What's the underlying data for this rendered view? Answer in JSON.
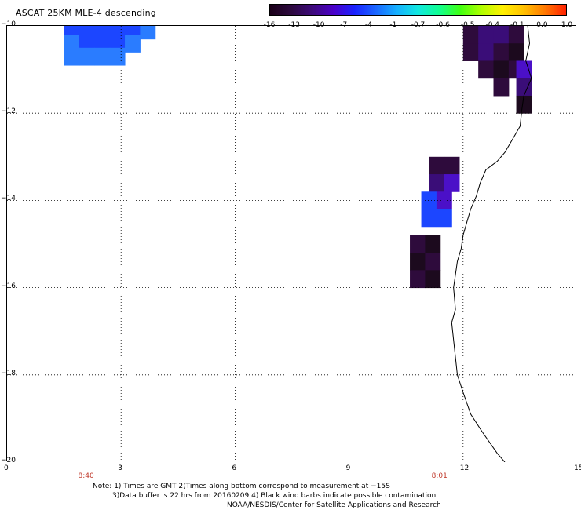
{
  "title": "ASCAT 25KM MLE-4 descending",
  "colorbar": {
    "colors": [
      "#1a0018",
      "#2d0a3f",
      "#3d0a7a",
      "#4b00c8",
      "#1a22ff",
      "#1a66ff",
      "#16b0ff",
      "#12e8e0",
      "#10ff90",
      "#40ff10",
      "#b0ff00",
      "#fff000",
      "#ffc000",
      "#ff7800",
      "#ff2000"
    ],
    "labels": [
      "-16",
      "-13",
      "-10",
      "-7",
      "-4",
      "-1",
      "-0.7",
      "-0.6",
      "-0.5",
      "-0.4",
      "-0.1",
      "0.0",
      "1.0"
    ]
  },
  "axes": {
    "x_ticks": [
      "0",
      "3",
      "6",
      "9",
      "12",
      "15"
    ],
    "y_ticks": [
      "-10",
      "-12",
      "-14",
      "-16",
      "-18",
      "-20"
    ],
    "xlim": [
      0,
      15
    ],
    "ylim": [
      -20,
      -10
    ]
  },
  "pass_times": [
    {
      "label": "8:40",
      "lon": 2.1
    },
    {
      "label": "8:01",
      "lon": 11.4
    }
  ],
  "mle_cells": [
    {
      "lon": 1.7,
      "lat": -10.1,
      "level": 4
    },
    {
      "lon": 2.1,
      "lat": -10.1,
      "level": 4
    },
    {
      "lon": 2.5,
      "lat": -10.1,
      "level": 4
    },
    {
      "lon": 2.9,
      "lat": -10.1,
      "level": 4
    },
    {
      "lon": 3.3,
      "lat": -10.1,
      "level": 4
    },
    {
      "lon": 3.7,
      "lat": -10.1,
      "level": 5
    },
    {
      "lon": 1.7,
      "lat": -10.4,
      "level": 5
    },
    {
      "lon": 2.1,
      "lat": -10.4,
      "level": 4
    },
    {
      "lon": 2.5,
      "lat": -10.4,
      "level": 4
    },
    {
      "lon": 2.9,
      "lat": -10.4,
      "level": 4
    },
    {
      "lon": 3.3,
      "lat": -10.4,
      "level": 5
    },
    {
      "lon": 1.7,
      "lat": -10.7,
      "level": 5
    },
    {
      "lon": 2.1,
      "lat": -10.7,
      "level": 5
    },
    {
      "lon": 2.5,
      "lat": -10.7,
      "level": 5
    },
    {
      "lon": 2.9,
      "lat": -10.7,
      "level": 5
    },
    {
      "lon": 12.2,
      "lat": -10.2,
      "level": 1
    },
    {
      "lon": 12.6,
      "lat": -10.2,
      "level": 2
    },
    {
      "lon": 13.0,
      "lat": -10.2,
      "level": 2
    },
    {
      "lon": 13.4,
      "lat": -10.2,
      "level": 1
    },
    {
      "lon": 12.2,
      "lat": -10.6,
      "level": 1
    },
    {
      "lon": 12.6,
      "lat": -10.6,
      "level": 2
    },
    {
      "lon": 13.0,
      "lat": -10.6,
      "level": 1
    },
    {
      "lon": 13.4,
      "lat": -10.6,
      "level": 0
    },
    {
      "lon": 12.6,
      "lat": -11.0,
      "level": 1
    },
    {
      "lon": 13.0,
      "lat": -11.0,
      "level": 0
    },
    {
      "lon": 13.4,
      "lat": -11.0,
      "level": 1
    },
    {
      "lon": 13.6,
      "lat": -11.0,
      "level": 3
    },
    {
      "lon": 13.0,
      "lat": -11.4,
      "level": 1
    },
    {
      "lon": 13.6,
      "lat": -11.4,
      "level": 2
    },
    {
      "lon": 13.6,
      "lat": -11.8,
      "level": 0
    },
    {
      "lon": 11.3,
      "lat": -13.2,
      "level": 1
    },
    {
      "lon": 11.7,
      "lat": -13.2,
      "level": 1
    },
    {
      "lon": 11.3,
      "lat": -13.6,
      "level": 2
    },
    {
      "lon": 11.7,
      "lat": -13.6,
      "level": 3
    },
    {
      "lon": 11.1,
      "lat": -14.0,
      "level": 4
    },
    {
      "lon": 11.5,
      "lat": -14.0,
      "level": 3
    },
    {
      "lon": 11.1,
      "lat": -14.4,
      "level": 4
    },
    {
      "lon": 11.5,
      "lat": -14.4,
      "level": 4
    },
    {
      "lon": 10.8,
      "lat": -15.0,
      "level": 1
    },
    {
      "lon": 11.2,
      "lat": -15.0,
      "level": 0
    },
    {
      "lon": 10.8,
      "lat": -15.4,
      "level": 0
    },
    {
      "lon": 11.2,
      "lat": -15.4,
      "level": 1
    },
    {
      "lon": 10.8,
      "lat": -15.8,
      "level": 1
    },
    {
      "lon": 11.2,
      "lat": -15.8,
      "level": 0
    }
  ],
  "coastline": [
    [
      13.7,
      -10.0
    ],
    [
      13.75,
      -10.4
    ],
    [
      13.65,
      -10.8
    ],
    [
      13.8,
      -11.2
    ],
    [
      13.6,
      -11.6
    ],
    [
      13.55,
      -11.9
    ],
    [
      13.5,
      -12.3
    ],
    [
      13.3,
      -12.6
    ],
    [
      13.1,
      -12.9
    ],
    [
      12.9,
      -13.1
    ],
    [
      12.6,
      -13.3
    ],
    [
      12.45,
      -13.6
    ],
    [
      12.35,
      -13.9
    ],
    [
      12.2,
      -14.2
    ],
    [
      12.1,
      -14.5
    ],
    [
      12.0,
      -14.8
    ],
    [
      11.95,
      -15.1
    ],
    [
      11.85,
      -15.4
    ],
    [
      11.8,
      -15.7
    ],
    [
      11.75,
      -16.0
    ],
    [
      11.8,
      -16.5
    ],
    [
      11.7,
      -16.8
    ],
    [
      11.75,
      -17.2
    ],
    [
      11.8,
      -17.6
    ],
    [
      11.85,
      -18.0
    ],
    [
      12.0,
      -18.4
    ],
    [
      12.2,
      -18.9
    ],
    [
      12.5,
      -19.3
    ],
    [
      12.9,
      -19.8
    ],
    [
      13.1,
      -20.0
    ]
  ],
  "notes": {
    "line1": "Note: 1) Times are GMT 2)Times along bottom correspond to measurement at −15S",
    "line2": "3)Data buffer is 22 hrs from 20160209 4) Black wind barbs indicate possible contamination",
    "line3": "NOAA/NESDIS/Center for Satellite Applications and Research"
  }
}
